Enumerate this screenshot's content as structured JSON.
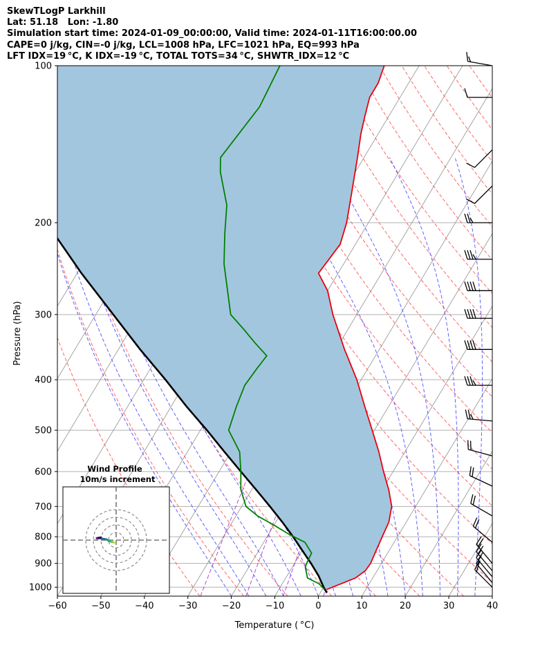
{
  "header": {
    "line1": "SkewTLogP Larkhill",
    "line2": "Lat: 51.18   Lon: -1.80",
    "line3": "Simulation start time: 2024-01-09_00:00:00, Valid time: 2024-01-11T16:00:00.00",
    "line4": "CAPE=0 j/kg, CIN=-0 j/kg, LCL=1008 hPa, LFC=1021 hPa, EQ=993 hPa",
    "line5": "LFT IDX=19 °C, K IDX=-19 °C, TOTAL TOTS=34 °C, SHWTR_IDX=12 °C"
  },
  "colors": {
    "temperature": "#e8000b",
    "dewpoint": "#008000",
    "parcel": "#000000",
    "cape_fill": "#a3c6df",
    "dry_adiabat": "#ff5555",
    "moist_adiabat": "#4444ff",
    "isotherm": "#9b9b9b",
    "mixing_ratio": "#a020c0"
  },
  "chart_data": {
    "type": "skewt",
    "title": "",
    "xlabel": "Temperature ( °C)",
    "ylabel": "Pressure (hPa)",
    "xlim": [
      -60,
      40
    ],
    "ylim": [
      1040,
      100
    ],
    "x_ticks": [
      "−60",
      "−50",
      "−40",
      "−30",
      "−20",
      "−10",
      "0",
      "10",
      "20",
      "30",
      "40"
    ],
    "x_tick_values": [
      -60,
      -50,
      -40,
      -30,
      -20,
      -10,
      0,
      10,
      20,
      30,
      40
    ],
    "y_ticks": [
      "100",
      "200",
      "300",
      "400",
      "500",
      "600",
      "700",
      "800",
      "900",
      "1000"
    ],
    "y_tick_values": [
      100,
      200,
      300,
      400,
      500,
      600,
      700,
      800,
      900,
      1000
    ],
    "grid": true,
    "temperature_profile": [
      {
        "p": 1010,
        "t": 1.0
      },
      {
        "p": 985,
        "t": 3.5
      },
      {
        "p": 960,
        "t": 6.0
      },
      {
        "p": 930,
        "t": 7.3
      },
      {
        "p": 900,
        "t": 7.5
      },
      {
        "p": 850,
        "t": 7.0
      },
      {
        "p": 800,
        "t": 6.5
      },
      {
        "p": 750,
        "t": 6.0
      },
      {
        "p": 700,
        "t": 4.5
      },
      {
        "p": 650,
        "t": 1.5
      },
      {
        "p": 600,
        "t": -2.2
      },
      {
        "p": 550,
        "t": -6.0
      },
      {
        "p": 500,
        "t": -10.5
      },
      {
        "p": 450,
        "t": -15.5
      },
      {
        "p": 400,
        "t": -21.0
      },
      {
        "p": 350,
        "t": -28.0
      },
      {
        "p": 300,
        "t": -35.5
      },
      {
        "p": 270,
        "t": -40.0
      },
      {
        "p": 250,
        "t": -44.5
      },
      {
        "p": 235,
        "t": -44.0
      },
      {
        "p": 220,
        "t": -43.5
      },
      {
        "p": 200,
        "t": -45.0
      },
      {
        "p": 175,
        "t": -48.0
      },
      {
        "p": 150,
        "t": -51.5
      },
      {
        "p": 135,
        "t": -54.0
      },
      {
        "p": 125,
        "t": -55.5
      },
      {
        "p": 115,
        "t": -57.0
      },
      {
        "p": 108,
        "t": -57.0
      },
      {
        "p": 100,
        "t": -58.0
      }
    ],
    "dewpoint_profile": [
      {
        "p": 1010,
        "td": 0.5
      },
      {
        "p": 985,
        "td": -1.5
      },
      {
        "p": 960,
        "td": -5.0
      },
      {
        "p": 915,
        "td": -7.0
      },
      {
        "p": 900,
        "td": -7.2
      },
      {
        "p": 860,
        "td": -7.5
      },
      {
        "p": 820,
        "td": -10.5
      },
      {
        "p": 790,
        "td": -15.5
      },
      {
        "p": 760,
        "td": -20.0
      },
      {
        "p": 730,
        "td": -25.0
      },
      {
        "p": 700,
        "td": -29.0
      },
      {
        "p": 650,
        "td": -32.5
      },
      {
        "p": 600,
        "td": -35.0
      },
      {
        "p": 550,
        "td": -38.0
      },
      {
        "p": 500,
        "td": -43.5
      },
      {
        "p": 450,
        "td": -45.0
      },
      {
        "p": 410,
        "td": -46.0
      },
      {
        "p": 380,
        "td": -45.5
      },
      {
        "p": 360,
        "td": -45.0
      },
      {
        "p": 340,
        "td": -49.5
      },
      {
        "p": 320,
        "td": -54.0
      },
      {
        "p": 300,
        "td": -59.0
      },
      {
        "p": 270,
        "td": -63.0
      },
      {
        "p": 240,
        "td": -67.5
      },
      {
        "p": 210,
        "td": -71.5
      },
      {
        "p": 185,
        "td": -75.0
      },
      {
        "p": 160,
        "td": -81.0
      },
      {
        "p": 150,
        "td": -83.0
      },
      {
        "p": 120,
        "td": -81.0
      },
      {
        "p": 100,
        "td": -82.0
      }
    ],
    "parcel_profile": [
      {
        "p": 1025,
        "t": 1.5
      },
      {
        "p": 1000,
        "t": 0.0
      },
      {
        "p": 950,
        "t": -2.8
      },
      {
        "p": 900,
        "t": -6.2
      },
      {
        "p": 850,
        "t": -10.0
      },
      {
        "p": 800,
        "t": -14.0
      },
      {
        "p": 750,
        "t": -18.5
      },
      {
        "p": 700,
        "t": -23.5
      },
      {
        "p": 650,
        "t": -29.0
      },
      {
        "p": 600,
        "t": -35.0
      },
      {
        "p": 550,
        "t": -41.5
      },
      {
        "p": 500,
        "t": -48.5
      },
      {
        "p": 450,
        "t": -56.5
      },
      {
        "p": 400,
        "t": -65.0
      },
      {
        "p": 350,
        "t": -75.0
      },
      {
        "p": 300,
        "t": -86.0
      },
      {
        "p": 250,
        "t": -99.0
      },
      {
        "p": 200,
        "t": -114.0
      },
      {
        "p": 175,
        "t": -122.5
      },
      {
        "p": 150,
        "t": -132.0
      },
      {
        "p": 125,
        "t": -143.0
      },
      {
        "p": 110,
        "t": -150.5
      },
      {
        "p": 100,
        "t": -156.0
      }
    ],
    "wind_barbs": [
      {
        "p": 100,
        "speed_kt": 15,
        "dir_deg": 280
      },
      {
        "p": 115,
        "speed_kt": 10,
        "dir_deg": 270
      },
      {
        "p": 145,
        "speed_kt": 10,
        "dir_deg": 225
      },
      {
        "p": 170,
        "speed_kt": 10,
        "dir_deg": 225
      },
      {
        "p": 200,
        "speed_kt": 25,
        "dir_deg": 270
      },
      {
        "p": 235,
        "speed_kt": 35,
        "dir_deg": 270
      },
      {
        "p": 270,
        "speed_kt": 40,
        "dir_deg": 270
      },
      {
        "p": 305,
        "speed_kt": 40,
        "dir_deg": 270
      },
      {
        "p": 350,
        "speed_kt": 40,
        "dir_deg": 270
      },
      {
        "p": 410,
        "speed_kt": 35,
        "dir_deg": 270
      },
      {
        "p": 480,
        "speed_kt": 25,
        "dir_deg": 275
      },
      {
        "p": 560,
        "speed_kt": 20,
        "dir_deg": 285
      },
      {
        "p": 640,
        "speed_kt": 20,
        "dir_deg": 295
      },
      {
        "p": 730,
        "speed_kt": 20,
        "dir_deg": 300
      },
      {
        "p": 820,
        "speed_kt": 20,
        "dir_deg": 310
      },
      {
        "p": 900,
        "speed_kt": 20,
        "dir_deg": 320
      },
      {
        "p": 930,
        "speed_kt": 20,
        "dir_deg": 320
      },
      {
        "p": 955,
        "speed_kt": 20,
        "dir_deg": 320
      },
      {
        "p": 980,
        "speed_kt": 15,
        "dir_deg": 320
      },
      {
        "p": 1000,
        "speed_kt": 15,
        "dir_deg": 315
      }
    ],
    "hodograph": {
      "title": "Wind Profile",
      "subtitle": "10m/s increment",
      "rings_ms": [
        10,
        20,
        30,
        40
      ],
      "points_uv": [
        [
          -2,
          -4
        ],
        [
          -2.5,
          -3.2
        ],
        [
          -3.5,
          -2.8
        ],
        [
          -5,
          -2.5
        ],
        [
          -6.5,
          -2.2
        ],
        [
          -8,
          -1.5
        ],
        [
          -9.5,
          -1
        ],
        [
          -11,
          0
        ],
        [
          -13,
          1
        ],
        [
          -16,
          1.5
        ],
        [
          -19,
          2
        ],
        [
          -22,
          2.5
        ],
        [
          -24,
          2.5
        ],
        [
          -25.5,
          2.5
        ],
        [
          -23,
          3
        ],
        [
          -20,
          3.5
        ]
      ]
    }
  }
}
